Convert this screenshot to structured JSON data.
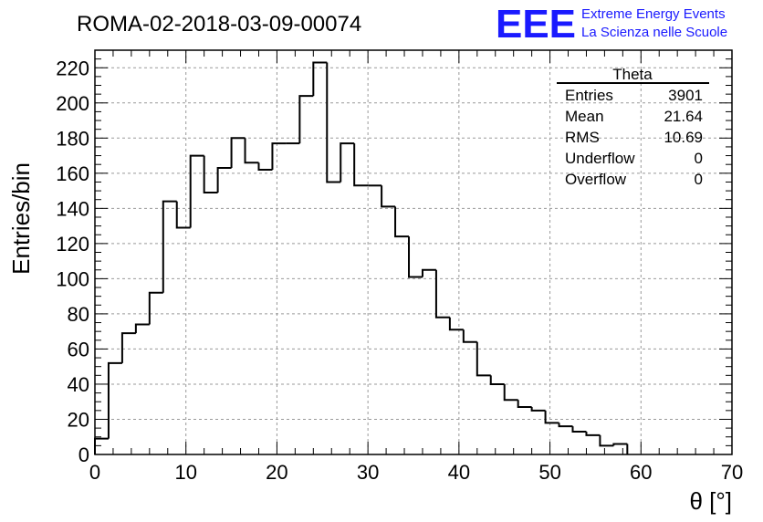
{
  "title": "ROMA-02-2018-03-09-00074",
  "logo": {
    "mark": "EEE",
    "line1": "Extreme Energy Events",
    "line2": "La Scienza nelle Scuole",
    "color": "#1a1aff"
  },
  "stats": {
    "name": "Theta",
    "rows": [
      {
        "label": "Entries",
        "value": "3901"
      },
      {
        "label": "Mean",
        "value": "21.64"
      },
      {
        "label": "RMS",
        "value": "10.69"
      },
      {
        "label": "Underflow",
        "value": "0"
      },
      {
        "label": "Overflow",
        "value": "0"
      }
    ]
  },
  "chart_data": {
    "type": "histogram",
    "xlabel": "θ [°]",
    "ylabel": "Entries/bin",
    "xlim": [
      0,
      70
    ],
    "ylim": [
      0,
      230
    ],
    "grid": true,
    "bin_width": 1.5,
    "x_start": 0,
    "values": [
      9,
      52,
      69,
      74,
      92,
      144,
      129,
      170,
      149,
      163,
      180,
      166,
      162,
      177,
      177,
      204,
      223,
      155,
      177,
      153,
      153,
      141,
      124,
      101,
      105,
      78,
      71,
      64,
      45,
      40,
      31,
      27,
      25,
      18,
      16,
      13,
      11,
      5,
      6
    ],
    "xticks": [
      0,
      10,
      20,
      30,
      40,
      50,
      60,
      70
    ],
    "yticks": [
      0,
      20,
      40,
      60,
      80,
      100,
      120,
      140,
      160,
      180,
      200,
      220
    ]
  }
}
